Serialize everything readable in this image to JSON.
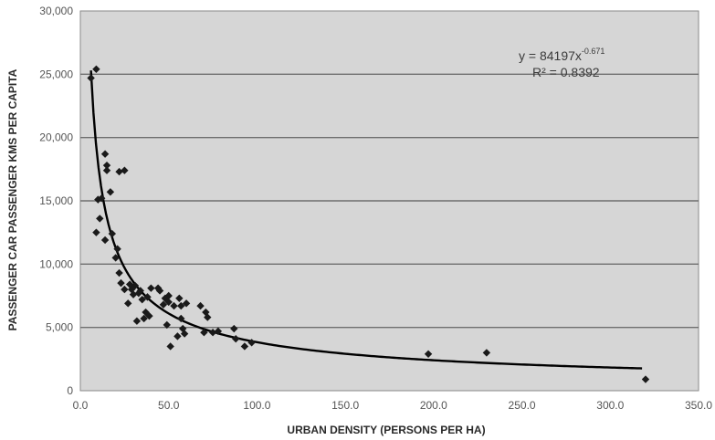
{
  "chart_data": {
    "type": "scatter",
    "title": "",
    "xlabel": "URBAN DENSITY (PERSONS PER HA)",
    "ylabel": "PASSENGER CAR PASSENGER KMS PER CAPITA",
    "xlim": [
      0,
      350
    ],
    "ylim": [
      0,
      30000
    ],
    "x_ticks": [
      "0.0",
      "50.0",
      "100.0",
      "150.0",
      "200.0",
      "250.0",
      "300.0",
      "350.0"
    ],
    "y_ticks": [
      "0",
      "5,000",
      "10,000",
      "15,000",
      "20,000",
      "25,000",
      "30,000"
    ],
    "grid": "horizontal",
    "legend": "none",
    "colors": {
      "plot_background": "#d6d6d6",
      "marker": "#1a1a1a",
      "trendline": "#000000",
      "gridline": "#6e6e6e"
    },
    "annotation": {
      "equation_prefix": "y = 84197x",
      "exponent": "-0.671",
      "r_squared": "R² = 0.8392"
    },
    "trendline": {
      "kind": "power",
      "coefficient": 84197,
      "exponent": -0.671,
      "x_range": [
        6,
        318
      ]
    },
    "series": [
      {
        "x": [
          6,
          9,
          9,
          10,
          11,
          12,
          14,
          14,
          15,
          15,
          17,
          18,
          20,
          21,
          22,
          22,
          23,
          25,
          25,
          27,
          28,
          29,
          30,
          31,
          32,
          33,
          34,
          35,
          36,
          37,
          38,
          39,
          40,
          44,
          45,
          47,
          48,
          49,
          50,
          50,
          51,
          53,
          55,
          56,
          57,
          57,
          58,
          59,
          60,
          68,
          70,
          71,
          72,
          75,
          78,
          87,
          88,
          93,
          97,
          197,
          230,
          320
        ],
        "y": [
          24700,
          25400,
          12500,
          15100,
          13600,
          15200,
          11900,
          18700,
          17400,
          17800,
          15700,
          12400,
          10500,
          11200,
          17300,
          9300,
          8500,
          8000,
          17400,
          6900,
          8400,
          8000,
          7600,
          8300,
          5500,
          7700,
          7900,
          7200,
          5700,
          6200,
          7400,
          5900,
          8100,
          8100,
          7900,
          6800,
          7300,
          5200,
          7500,
          7000,
          3500,
          6700,
          4300,
          7300,
          5700,
          6700,
          4900,
          4500,
          6900,
          6700,
          4600,
          6200,
          5800,
          4600,
          4700,
          4900,
          4100,
          3500,
          3800,
          2900,
          3000,
          900
        ]
      }
    ]
  }
}
